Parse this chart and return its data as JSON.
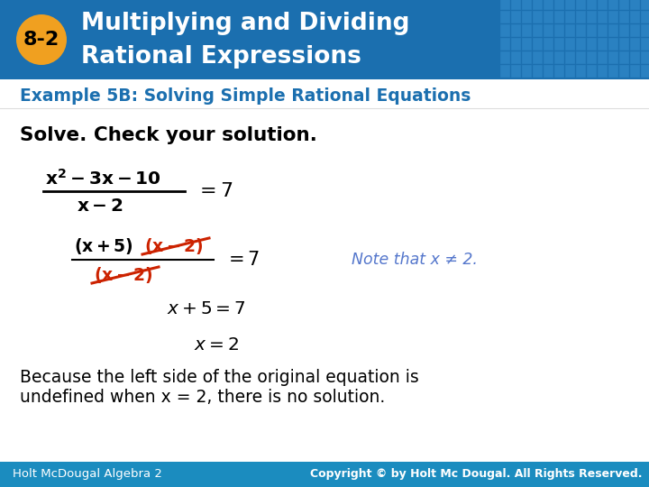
{
  "header_bg_color": "#1b6faf",
  "header_grid_color": "#2d85c5",
  "header_text_color": "#ffffff",
  "header_line1": "Multiplying and Dividing",
  "header_line2": "Rational Expressions",
  "badge_color": "#f0a020",
  "badge_text": "8-2",
  "badge_text_color": "#000000",
  "example_text": "Example 5B: Solving Simple Rational Equations",
  "example_text_color": "#1b6faf",
  "body_bg": "#ffffff",
  "solve_text": "Solve. Check your solution.",
  "footer_bg_color": "#1b8cbf",
  "footer_left": "Holt Mc.Dougal Algebra 2",
  "footer_right": "Copyright © by Holt Mc Dougal. All Rights Reserved.",
  "footer_text_color": "#ffffff",
  "note_text": "Note that x ≠ 2.",
  "note_color": "#5577cc",
  "math_color": "#000000",
  "red_color": "#cc2200",
  "fig_width": 7.2,
  "fig_height": 5.4,
  "dpi": 100
}
